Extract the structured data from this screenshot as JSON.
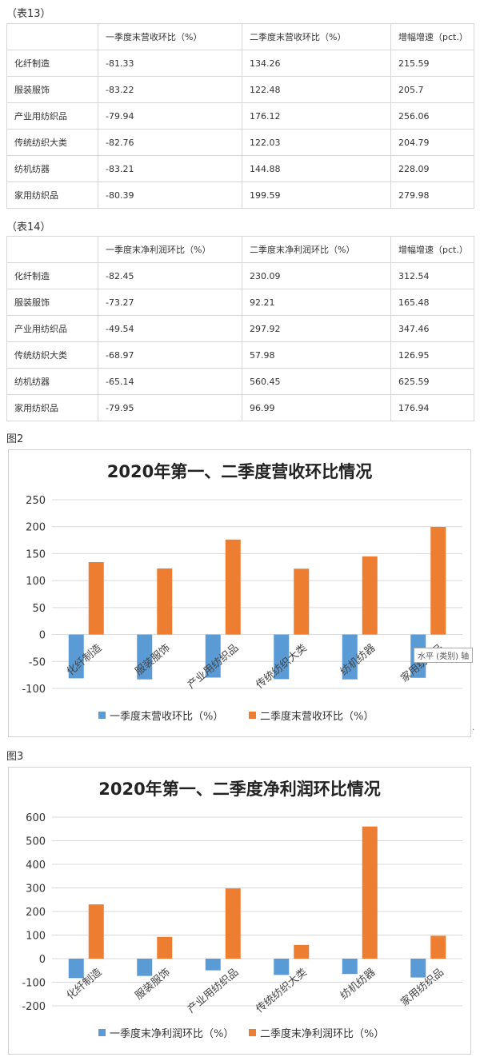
{
  "table13": {
    "caption": "（表13）",
    "header": [
      "",
      "一季度末营收环比（%）",
      "二季度末营收环比（%）",
      "增幅增速（pct.）"
    ],
    "rows": [
      [
        "化纤制造",
        "-81.33",
        "134.26",
        "215.59"
      ],
      [
        "服装服饰",
        "-83.22",
        "122.48",
        "205.7"
      ],
      [
        "产业用纺织品",
        "-79.94",
        "176.12",
        "256.06"
      ],
      [
        "传统纺织大类",
        "-82.76",
        "122.03",
        "204.79"
      ],
      [
        "纺机纺器",
        "-83.21",
        "144.88",
        "228.09"
      ],
      [
        "家用纺织品",
        "-80.39",
        "199.59",
        "279.98"
      ]
    ]
  },
  "table14": {
    "caption": "（表14）",
    "header": [
      "",
      "一季度末净利润环比（%）",
      "二季度末净利润环比（%）",
      "增幅增速（pct.）"
    ],
    "rows": [
      [
        "化纤制造",
        "-82.45",
        "230.09",
        "312.54"
      ],
      [
        "服装服饰",
        "-73.27",
        "92.21",
        "165.48"
      ],
      [
        "产业用纺织品",
        "-49.54",
        "297.92",
        "347.46"
      ],
      [
        "传统纺织大类",
        "-68.97",
        "57.98",
        "126.95"
      ],
      [
        "纺机纺器",
        "-65.14",
        "560.45",
        "625.59"
      ],
      [
        "家用纺织品",
        "-79.95",
        "96.99",
        "176.94"
      ]
    ]
  },
  "figure2_caption": "图2",
  "figure3_caption": "图3",
  "tooltip_text": "水平 (类别) 轴",
  "trailing_dot": ".",
  "colors": {
    "q1": "#5B9BD5",
    "q2": "#ED7D31",
    "grid": "#d9d9d9"
  },
  "chart_data": [
    {
      "type": "bar",
      "title": "2020年第一、二季度营收环比情况",
      "categories": [
        "化纤制造",
        "服装服饰",
        "产业用纺织品",
        "传统纺织大类",
        "纺机纺器",
        "家用纺织品"
      ],
      "series": [
        {
          "name": "一季度末营收环比（%）",
          "values": [
            -81.33,
            -83.22,
            -79.94,
            -82.76,
            -83.21,
            -80.39
          ]
        },
        {
          "name": "二季度末营收环比（%）",
          "values": [
            134.26,
            122.48,
            176.12,
            122.03,
            144.88,
            199.59
          ]
        }
      ],
      "yticks": [
        250,
        200,
        150,
        100,
        50,
        0,
        -50,
        -100
      ],
      "ylim": [
        -100,
        250
      ],
      "grid": true,
      "legend": "bottom"
    },
    {
      "type": "bar",
      "title": "2020年第一、二季度净利润环比情况",
      "categories": [
        "化纤制造",
        "服装服饰",
        "产业用纺织品",
        "传统纺织大类",
        "纺机纺器",
        "家用纺织品"
      ],
      "series": [
        {
          "name": "一季度末净利润环比（%）",
          "values": [
            -82.45,
            -73.27,
            -49.54,
            -68.97,
            -65.14,
            -79.95
          ]
        },
        {
          "name": "二季度末净利润环比（%）",
          "values": [
            230.09,
            92.21,
            297.92,
            57.98,
            560.45,
            96.99
          ]
        }
      ],
      "yticks": [
        600,
        500,
        400,
        300,
        200,
        100,
        0,
        -100,
        -200
      ],
      "ylim": [
        -200,
        600
      ],
      "grid": true,
      "legend": "bottom"
    }
  ]
}
